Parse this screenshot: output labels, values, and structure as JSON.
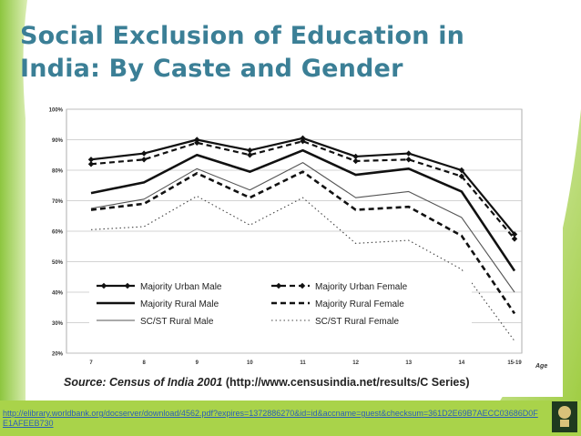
{
  "slide": {
    "title_line1": "Social Exclusion of Education in",
    "title_line2": "India: By Caste and Gender",
    "link": "http://elibrary.worldbank.org/docserver/download/4562.pdf?expires=1372886270&id=id&accname=guest&checksum=361D2E69B7AECC03686D0FE1AFEEB730",
    "colors": {
      "title": "#3b7f96",
      "accent_green": "#9ccb3c",
      "link": "#2c5fb8"
    }
  },
  "chart_data": {
    "type": "line",
    "title": "",
    "xlabel": "Age",
    "ylabel": "",
    "categories": [
      "7",
      "8",
      "9",
      "10",
      "11",
      "12",
      "13",
      "14",
      "15-19"
    ],
    "y_ticks": [
      "20%",
      "30%",
      "40%",
      "50%",
      "60%",
      "70%",
      "80%",
      "90%",
      "100%"
    ],
    "ylim": [
      20,
      100
    ],
    "grid": true,
    "legend_position": "bottom-inside",
    "source_label": "Source: Census of India 2001",
    "source_url": "(http://www.censusindia.net/results/C  Series)",
    "series": [
      {
        "name": "Majority Urban Male",
        "style": "solid-diamond",
        "values": [
          83.5,
          85.5,
          90,
          86.5,
          90.5,
          84.5,
          85.5,
          80,
          59
        ]
      },
      {
        "name": "Majority Urban Female",
        "style": "dash-diamond",
        "values": [
          82,
          83.5,
          89,
          85,
          89.5,
          83,
          83.5,
          78,
          57.5
        ]
      },
      {
        "name": "Majority Rural Male",
        "style": "solid-thick",
        "values": [
          72.5,
          76,
          85,
          79.5,
          86.5,
          78.5,
          80.5,
          73,
          47
        ]
      },
      {
        "name": "Majority Rural Female",
        "style": "dash-thick",
        "values": [
          67,
          69,
          79,
          71,
          79.5,
          67,
          68,
          58.5,
          33
        ]
      },
      {
        "name": "SC/ST Rural Male",
        "style": "solid-thin",
        "values": [
          67.5,
          70.5,
          80.5,
          73.5,
          82.5,
          71,
          73,
          64.5,
          40
        ]
      },
      {
        "name": "SC/ST Rural Female",
        "style": "dotted",
        "values": [
          60.5,
          61.5,
          71.5,
          62,
          71,
          56,
          57,
          47.5,
          24
        ]
      }
    ]
  }
}
